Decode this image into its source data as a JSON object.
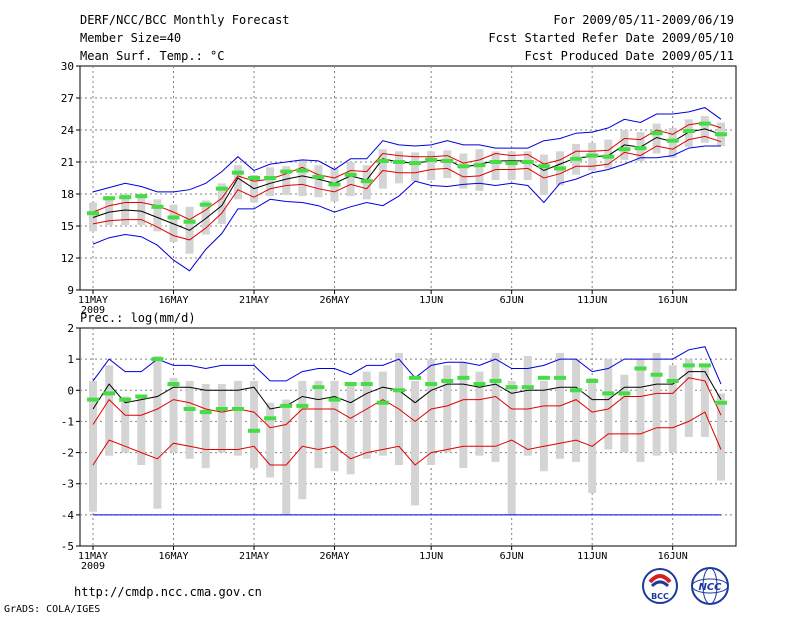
{
  "header": {
    "title": "DERF/NCC/BCC Monthly Forecast",
    "member_size": "Member Size=40",
    "variable1": "Mean Surf. Temp.: °C",
    "period": "For 2009/05/11-2009/06/19",
    "fcst_started": "Fcst Started Refer Date 2009/05/10",
    "fcst_produced": "Fcst Produced Date 2009/05/11"
  },
  "footer": {
    "url": "http://cmdp.ncc.cma.gov.cn",
    "grads": "GrADS: COLA/IGES",
    "logo_bcc": "BCC",
    "logo_ncc": "NCC"
  },
  "colors": {
    "ensemble_spread": "#0000dd",
    "percentile": "#e00000",
    "ensemble_mean": "#000000",
    "observed": "#44dd44",
    "box": "#d4d4d4"
  },
  "x_ticks": [
    "11MAY",
    "16MAY",
    "21MAY",
    "26MAY",
    "1JUN",
    "6JUN",
    "11JUN",
    "16JUN"
  ],
  "x_year": "2009",
  "chart_data": [
    {
      "type": "line",
      "title": "Mean Surf. Temp.: °C",
      "days": 40,
      "ylim": [
        9,
        30
      ],
      "yticks": [
        9,
        12,
        15,
        18,
        21,
        24,
        27,
        30
      ],
      "ytick_labels": [
        "9",
        "12",
        "15",
        "18",
        "21",
        "24",
        "27",
        "30"
      ],
      "grid": true,
      "series": [
        {
          "name": "max",
          "color": "#0000dd",
          "values": [
            13.3,
            13.9,
            14.2,
            14.0,
            13.2,
            11.8,
            10.8,
            12.8,
            14.3,
            16.6,
            16.6,
            17.5,
            17.3,
            17.2,
            16.9,
            16.3,
            16.8,
            17.2,
            16.9,
            17.8,
            19.2,
            18.8,
            18.7,
            18.9,
            19.0,
            18.8,
            19.0,
            18.8,
            17.2,
            19.0,
            19.4,
            20.0,
            20.3,
            20.8,
            21.4,
            21.4,
            21.6,
            22.3,
            22.5,
            22.5
          ]
        },
        {
          "name": "p_high",
          "color": "#e00000",
          "values": [
            16.3,
            16.9,
            17.2,
            17.2,
            16.9,
            16.3,
            15.6,
            16.5,
            17.6,
            19.7,
            19.2,
            19.4,
            19.9,
            20.5,
            19.8,
            19.5,
            20.2,
            20.1,
            21.8,
            21.6,
            21.5,
            21.5,
            21.6,
            20.9,
            21.2,
            21.8,
            21.6,
            21.7,
            20.8,
            21.2,
            22.0,
            22.0,
            22.1,
            23.2,
            23.1,
            24.0,
            23.6,
            24.5,
            24.7,
            24.2
          ]
        },
        {
          "name": "mean",
          "color": "#000000",
          "values": [
            15.8,
            16.3,
            16.5,
            16.4,
            15.8,
            15.2,
            14.6,
            15.7,
            16.9,
            19.5,
            18.5,
            19.0,
            19.4,
            19.7,
            19.4,
            19.0,
            19.7,
            19.3,
            21.3,
            21.0,
            20.9,
            21.1,
            21.2,
            20.5,
            20.8,
            21.1,
            21.1,
            21.1,
            20.2,
            20.8,
            21.4,
            21.5,
            21.6,
            22.6,
            22.4,
            23.3,
            22.9,
            23.8,
            24.1,
            23.6
          ]
        },
        {
          "name": "p_low",
          "color": "#e00000",
          "values": [
            15.2,
            15.5,
            15.6,
            15.6,
            14.9,
            14.1,
            13.7,
            14.8,
            16.2,
            18.4,
            17.7,
            18.5,
            18.8,
            18.9,
            18.5,
            18.2,
            18.9,
            18.5,
            20.2,
            20.0,
            20.0,
            20.3,
            20.4,
            19.6,
            19.7,
            20.3,
            20.3,
            20.4,
            19.5,
            19.9,
            20.6,
            20.6,
            20.8,
            21.9,
            21.6,
            22.5,
            22.2,
            23.1,
            23.4,
            22.9
          ]
        },
        {
          "name": "min",
          "color": "#0000dd",
          "values": [
            18.2,
            18.6,
            19.0,
            18.7,
            18.2,
            18.2,
            18.4,
            19.0,
            20.1,
            21.5,
            20.2,
            20.8,
            21.0,
            21.2,
            21.1,
            20.3,
            21.3,
            21.3,
            23.0,
            22.6,
            22.5,
            22.6,
            23.0,
            22.6,
            22.6,
            22.3,
            22.3,
            22.3,
            23.0,
            23.2,
            23.7,
            23.8,
            24.2,
            25.0,
            24.7,
            25.5,
            25.5,
            25.7,
            26.1,
            25.0
          ]
        }
      ],
      "boxes": {
        "low": [
          14.5,
          15.1,
          15.1,
          15.1,
          14.5,
          13.5,
          12.4,
          14.2,
          15.2,
          17.5,
          17.2,
          17.8,
          17.9,
          17.8,
          17.7,
          17.3,
          17.8,
          17.5,
          18.5,
          19.0,
          19.2,
          19.3,
          19.5,
          18.5,
          18.3,
          19.3,
          19.3,
          19.3,
          17.9,
          18.8,
          19.8,
          20.2,
          20.4,
          21.2,
          21.1,
          21.8,
          21.4,
          22.4,
          22.8,
          22.5
        ],
        "high": [
          17.2,
          17.8,
          18.0,
          18.0,
          17.5,
          17.0,
          16.8,
          17.4,
          19.0,
          20.7,
          19.8,
          20.5,
          20.6,
          21.2,
          20.7,
          20.4,
          21.0,
          20.7,
          22.2,
          22.0,
          21.9,
          22.0,
          22.1,
          21.8,
          22.2,
          22.0,
          22.0,
          22.0,
          21.7,
          22.0,
          22.7,
          22.8,
          23.1,
          24.0,
          23.8,
          24.6,
          24.2,
          25.0,
          25.3,
          24.7
        ]
      },
      "observed": [
        16.2,
        17.6,
        17.7,
        17.8,
        16.8,
        15.8,
        15.4,
        17.0,
        18.5,
        20.0,
        19.5,
        19.5,
        20.1,
        20.2,
        19.6,
        18.9,
        19.8,
        19.2,
        21.1,
        21.0,
        20.9,
        21.2,
        21.1,
        20.6,
        20.7,
        21.0,
        20.9,
        21.0,
        20.6,
        20.4,
        21.3,
        21.6,
        21.5,
        22.2,
        22.3,
        23.7,
        23.0,
        23.9,
        24.6,
        23.6
      ]
    },
    {
      "type": "line",
      "title": "Prec.: log(mm/d)",
      "days": 40,
      "ylim": [
        -5,
        2
      ],
      "yticks": [
        -5,
        -4,
        -3,
        -2,
        -1,
        0,
        1,
        2
      ],
      "ytick_labels": [
        "-5",
        "-4",
        "-3",
        "-2",
        "-1",
        "0",
        "1",
        "2"
      ],
      "grid": true,
      "series": [
        {
          "name": "min",
          "color": "#0000dd",
          "values": [
            -4,
            -4,
            -4,
            -4,
            -4,
            -4,
            -4,
            -4,
            -4,
            -4,
            -4,
            -4,
            -4,
            -4,
            -4,
            -4,
            -4,
            -4,
            -4,
            -4,
            -4,
            -4,
            -4,
            -4,
            -4,
            -4,
            -4,
            -4,
            -4,
            -4,
            -4,
            -4,
            -4,
            -4,
            -4,
            -4,
            -4,
            -4,
            -4,
            -4
          ]
        },
        {
          "name": "p_low",
          "color": "#e00000",
          "values": [
            -2.4,
            -1.6,
            -1.8,
            -2.0,
            -2.2,
            -1.7,
            -1.8,
            -1.9,
            -1.9,
            -1.9,
            -1.8,
            -2.4,
            -2.4,
            -1.8,
            -1.9,
            -1.8,
            -2.2,
            -2.0,
            -1.9,
            -1.8,
            -2.4,
            -2.0,
            -1.9,
            -1.8,
            -1.8,
            -1.8,
            -1.6,
            -1.9,
            -1.8,
            -1.7,
            -1.6,
            -1.8,
            -1.4,
            -1.4,
            -1.4,
            -1.2,
            -1.2,
            -1.0,
            -0.7,
            -1.9
          ]
        },
        {
          "name": "p_high",
          "color": "#e00000",
          "values": [
            -1.1,
            -0.3,
            -0.8,
            -0.8,
            -0.6,
            -0.3,
            -0.4,
            -0.6,
            -0.7,
            -0.6,
            -0.7,
            -1.2,
            -1.1,
            -0.6,
            -0.6,
            -0.6,
            -0.9,
            -0.6,
            -0.3,
            -0.6,
            -1.0,
            -0.6,
            -0.5,
            -0.3,
            -0.3,
            -0.2,
            -0.6,
            -0.6,
            -0.5,
            -0.5,
            -0.3,
            -0.7,
            -0.6,
            -0.2,
            -0.2,
            -0.1,
            -0.1,
            0.4,
            0.3,
            -0.8
          ]
        },
        {
          "name": "mean",
          "color": "#000000",
          "values": [
            -0.6,
            0.2,
            -0.4,
            -0.3,
            -0.2,
            0.1,
            0.1,
            0.0,
            0.0,
            0.0,
            0.1,
            -0.6,
            -0.5,
            -0.2,
            -0.3,
            -0.2,
            -0.4,
            -0.1,
            0.1,
            0.0,
            -0.4,
            0.0,
            0.2,
            0.2,
            0.1,
            0.2,
            -0.1,
            0.0,
            0.0,
            0.1,
            0.1,
            -0.3,
            -0.3,
            0.1,
            0.1,
            0.2,
            0.2,
            0.6,
            0.6,
            -0.3
          ]
        },
        {
          "name": "max",
          "color": "#0000dd",
          "values": [
            0.3,
            1.0,
            0.6,
            0.6,
            1.0,
            0.8,
            0.8,
            0.7,
            0.8,
            0.8,
            0.8,
            0.3,
            0.3,
            0.6,
            0.7,
            0.7,
            0.5,
            0.8,
            0.8,
            1.0,
            0.4,
            0.8,
            0.9,
            0.9,
            0.8,
            1.0,
            0.7,
            0.7,
            0.8,
            1.0,
            1.0,
            0.6,
            0.7,
            1.0,
            1.0,
            1.0,
            1.0,
            1.3,
            1.4,
            0.2
          ]
        }
      ],
      "boxes": {
        "low": [
          -3.9,
          -2.1,
          -2.0,
          -2.4,
          -3.8,
          -2.0,
          -2.2,
          -2.5,
          -2.0,
          -2.1,
          -2.5,
          -2.8,
          -4.0,
          -3.5,
          -2.5,
          -2.6,
          -2.7,
          -2.2,
          -2.1,
          -2.4,
          -3.7,
          -2.4,
          -2.0,
          -2.5,
          -2.1,
          -2.3,
          -4.0,
          -2.1,
          -2.6,
          -2.2,
          -2.3,
          -3.3,
          -1.9,
          -2.0,
          -2.3,
          -2.1,
          -2.0,
          -1.5,
          -1.5,
          -2.9
        ],
        "high": [
          0.3,
          0.8,
          -0.2,
          -0.2,
          1.1,
          0.4,
          0.3,
          0.2,
          0.2,
          0.3,
          0.3,
          -0.4,
          -0.3,
          0.3,
          0.3,
          0.3,
          0.2,
          0.6,
          0.6,
          1.2,
          0.3,
          1.0,
          0.8,
          0.9,
          0.6,
          1.2,
          0.3,
          1.1,
          0.3,
          1.2,
          1.0,
          0.4,
          1.0,
          0.5,
          1.0,
          1.2,
          0.8,
          1.0,
          0.8,
          -0.1
        ]
      },
      "observed": [
        -0.3,
        -0.1,
        -0.3,
        -0.2,
        1.0,
        0.2,
        -0.6,
        -0.7,
        -0.6,
        -0.6,
        -1.3,
        -0.9,
        -0.5,
        -0.5,
        0.1,
        -0.3,
        0.2,
        0.2,
        -0.4,
        0.0,
        0.4,
        0.2,
        0.3,
        0.4,
        0.2,
        0.3,
        0.1,
        0.1,
        0.4,
        0.4,
        0.0,
        0.3,
        -0.1,
        -0.1,
        0.7,
        0.5,
        0.3,
        0.8,
        0.8,
        -0.4
      ]
    }
  ]
}
